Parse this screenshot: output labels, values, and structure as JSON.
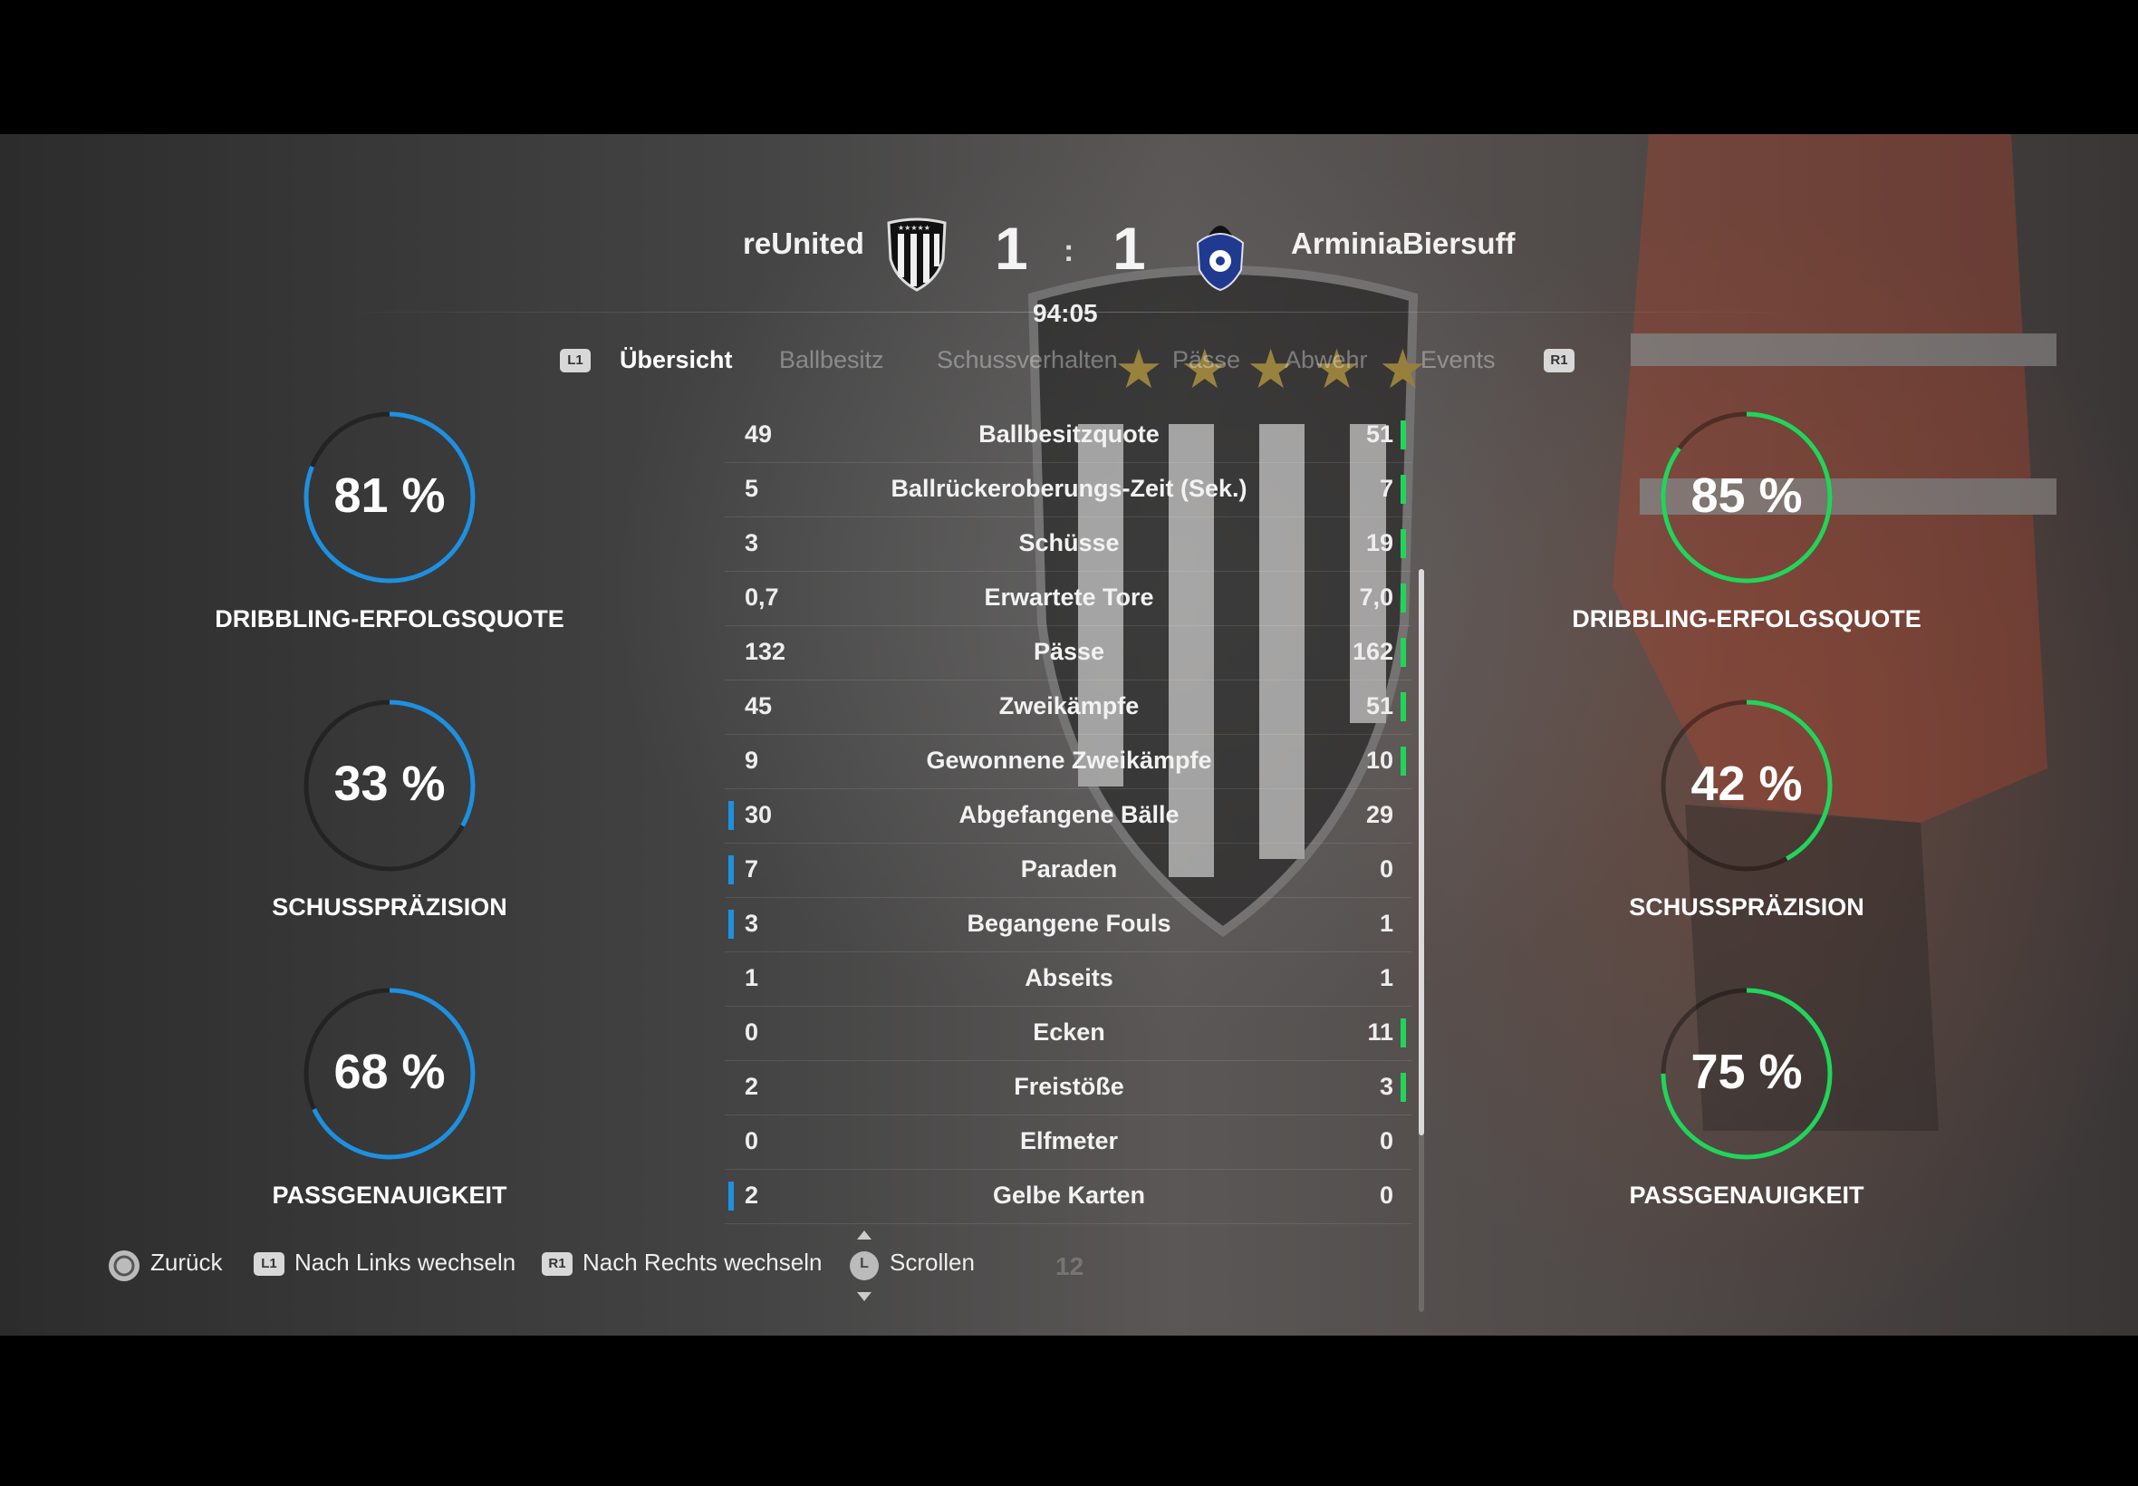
{
  "header": {
    "home_team": "reUnited",
    "away_team": "ArminiaBiersuff",
    "home_score": "1",
    "away_score": "1",
    "separator": ":",
    "time": "94:05"
  },
  "tabs": {
    "left_button": "L1",
    "right_button": "R1",
    "items": [
      "Übersicht",
      "Ballbesitz",
      "Schussverhalten",
      "Pässe",
      "Abwehr",
      "Events"
    ]
  },
  "left_rings": [
    {
      "value": "81 %",
      "fraction": 0.81,
      "label": "DRIBBLING-ERFOLGSQUOTE"
    },
    {
      "value": "33 %",
      "fraction": 0.33,
      "label": "SCHUSSPRÄZISION"
    },
    {
      "value": "68 %",
      "fraction": 0.68,
      "label": "PASSGENAUIGKEIT"
    }
  ],
  "right_rings": [
    {
      "value": "85 %",
      "fraction": 0.85,
      "label": "DRIBBLING-ERFOLGSQUOTE"
    },
    {
      "value": "42 %",
      "fraction": 0.42,
      "label": "SCHUSSPRÄZISION"
    },
    {
      "value": "75 %",
      "fraction": 0.75,
      "label": "PASSGENAUIGKEIT"
    }
  ],
  "colors": {
    "home_accent": "#1e90e0",
    "away_accent": "#22d45a"
  },
  "stats": [
    {
      "name": "Ballbesitzquote",
      "left": "49",
      "right": "51",
      "leader": "right"
    },
    {
      "name": "Ballrückeroberungs-Zeit (Sek.)",
      "left": "5",
      "right": "7",
      "leader": "right"
    },
    {
      "name": "Schüsse",
      "left": "3",
      "right": "19",
      "leader": "right"
    },
    {
      "name": "Erwartete Tore",
      "left": "0,7",
      "right": "7,0",
      "leader": "right"
    },
    {
      "name": "Pässe",
      "left": "132",
      "right": "162",
      "leader": "right"
    },
    {
      "name": "Zweikämpfe",
      "left": "45",
      "right": "51",
      "leader": "right"
    },
    {
      "name": "Gewonnene Zweikämpfe",
      "left": "9",
      "right": "10",
      "leader": "right"
    },
    {
      "name": "Abgefangene Bälle",
      "left": "30",
      "right": "29",
      "leader": "left"
    },
    {
      "name": "Paraden",
      "left": "7",
      "right": "0",
      "leader": "left"
    },
    {
      "name": "Begangene Fouls",
      "left": "3",
      "right": "1",
      "leader": "left"
    },
    {
      "name": "Abseits",
      "left": "1",
      "right": "1",
      "leader": "none"
    },
    {
      "name": "Ecken",
      "left": "0",
      "right": "11",
      "leader": "right"
    },
    {
      "name": "Freistöße",
      "left": "2",
      "right": "3",
      "leader": "right"
    },
    {
      "name": "Elfmeter",
      "left": "0",
      "right": "0",
      "leader": "none"
    },
    {
      "name": "Gelbe Karten",
      "left": "2",
      "right": "0",
      "leader": "left"
    }
  ],
  "footer": {
    "back": "Zurück",
    "l1_badge": "L1",
    "left": "Nach Links wechseln",
    "r1_badge": "R1",
    "right": "Nach Rechts wechseln",
    "stick_badge": "L",
    "scroll": "Scrollen",
    "page_number": "12"
  }
}
